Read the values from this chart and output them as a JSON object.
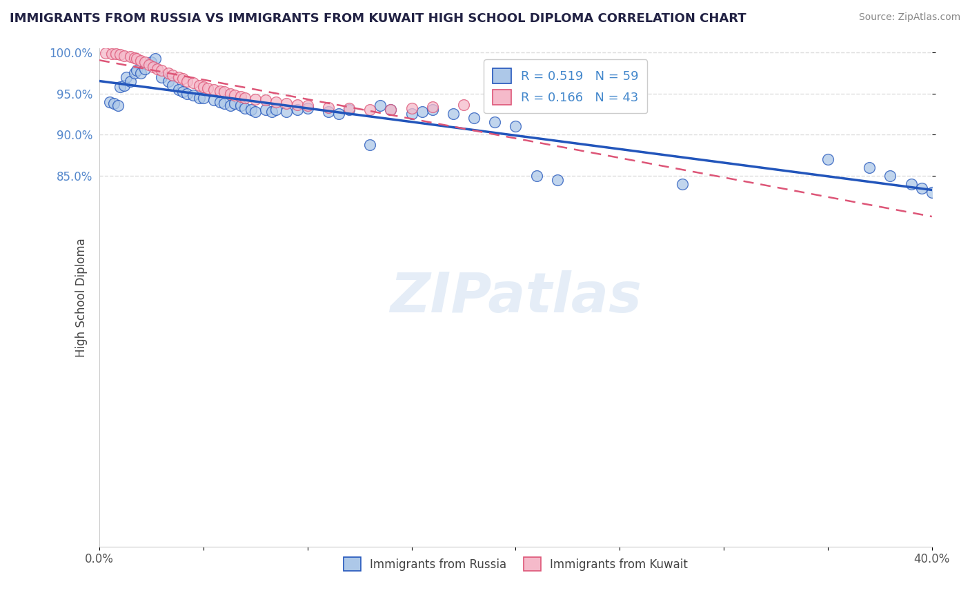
{
  "title": "IMMIGRANTS FROM RUSSIA VS IMMIGRANTS FROM KUWAIT HIGH SCHOOL DIPLOMA CORRELATION CHART",
  "source": "Source: ZipAtlas.com",
  "ylabel": "High School Diploma",
  "russia_R": 0.519,
  "russia_N": 59,
  "kuwait_R": 0.166,
  "kuwait_N": 43,
  "russia_color": "#adc8e8",
  "kuwait_color": "#f5baca",
  "russia_line_color": "#2255bb",
  "kuwait_line_color": "#dd5577",
  "legend_russia": "Immigrants from Russia",
  "legend_kuwait": "Immigrants from Kuwait",
  "russia_x": [
    0.005,
    0.007,
    0.009,
    0.01,
    0.012,
    0.013,
    0.015,
    0.017,
    0.018,
    0.02,
    0.022,
    0.025,
    0.027,
    0.03,
    0.033,
    0.035,
    0.038,
    0.04,
    0.042,
    0.045,
    0.048,
    0.05,
    0.055,
    0.058,
    0.06,
    0.063,
    0.065,
    0.068,
    0.07,
    0.073,
    0.075,
    0.08,
    0.083,
    0.085,
    0.09,
    0.095,
    0.1,
    0.11,
    0.115,
    0.12,
    0.13,
    0.135,
    0.14,
    0.15,
    0.155,
    0.16,
    0.17,
    0.18,
    0.19,
    0.2,
    0.21,
    0.22,
    0.28,
    0.35,
    0.37,
    0.38,
    0.39,
    0.395,
    0.4
  ],
  "russia_y": [
    0.94,
    0.938,
    0.935,
    0.958,
    0.96,
    0.97,
    0.965,
    0.975,
    0.978,
    0.975,
    0.98,
    0.988,
    0.992,
    0.97,
    0.965,
    0.96,
    0.955,
    0.952,
    0.95,
    0.948,
    0.945,
    0.945,
    0.942,
    0.94,
    0.938,
    0.935,
    0.938,
    0.935,
    0.932,
    0.93,
    0.928,
    0.93,
    0.928,
    0.93,
    0.928,
    0.93,
    0.932,
    0.928,
    0.925,
    0.93,
    0.888,
    0.935,
    0.93,
    0.925,
    0.928,
    0.93,
    0.925,
    0.92,
    0.915,
    0.91,
    0.85,
    0.845,
    0.84,
    0.87,
    0.86,
    0.85,
    0.84,
    0.835,
    0.83
  ],
  "kuwait_x": [
    0.003,
    0.006,
    0.008,
    0.01,
    0.012,
    0.015,
    0.017,
    0.018,
    0.02,
    0.022,
    0.024,
    0.026,
    0.028,
    0.03,
    0.033,
    0.035,
    0.038,
    0.04,
    0.042,
    0.045,
    0.048,
    0.05,
    0.052,
    0.055,
    0.058,
    0.06,
    0.063,
    0.065,
    0.068,
    0.07,
    0.075,
    0.08,
    0.085,
    0.09,
    0.095,
    0.1,
    0.11,
    0.12,
    0.13,
    0.14,
    0.15,
    0.16,
    0.175
  ],
  "kuwait_y": [
    0.999,
    0.998,
    0.998,
    0.997,
    0.996,
    0.995,
    0.993,
    0.992,
    0.99,
    0.988,
    0.985,
    0.982,
    0.98,
    0.978,
    0.975,
    0.972,
    0.97,
    0.968,
    0.965,
    0.963,
    0.96,
    0.958,
    0.956,
    0.955,
    0.953,
    0.952,
    0.95,
    0.948,
    0.946,
    0.945,
    0.943,
    0.942,
    0.94,
    0.938,
    0.936,
    0.935,
    0.933,
    0.932,
    0.93,
    0.93,
    0.932,
    0.934,
    0.936
  ],
  "watermark": "ZIPatlas",
  "grid_color": "#dddddd",
  "background_color": "#ffffff",
  "title_color": "#222244",
  "y_min": 0.4,
  "y_max": 1.005,
  "x_min": 0.0,
  "x_max": 0.4,
  "ytick_vals": [
    0.85,
    0.9,
    0.95,
    1.0
  ],
  "ytick_labels": [
    "85.0%",
    "90.0%",
    "95.0%",
    "100.0%"
  ]
}
